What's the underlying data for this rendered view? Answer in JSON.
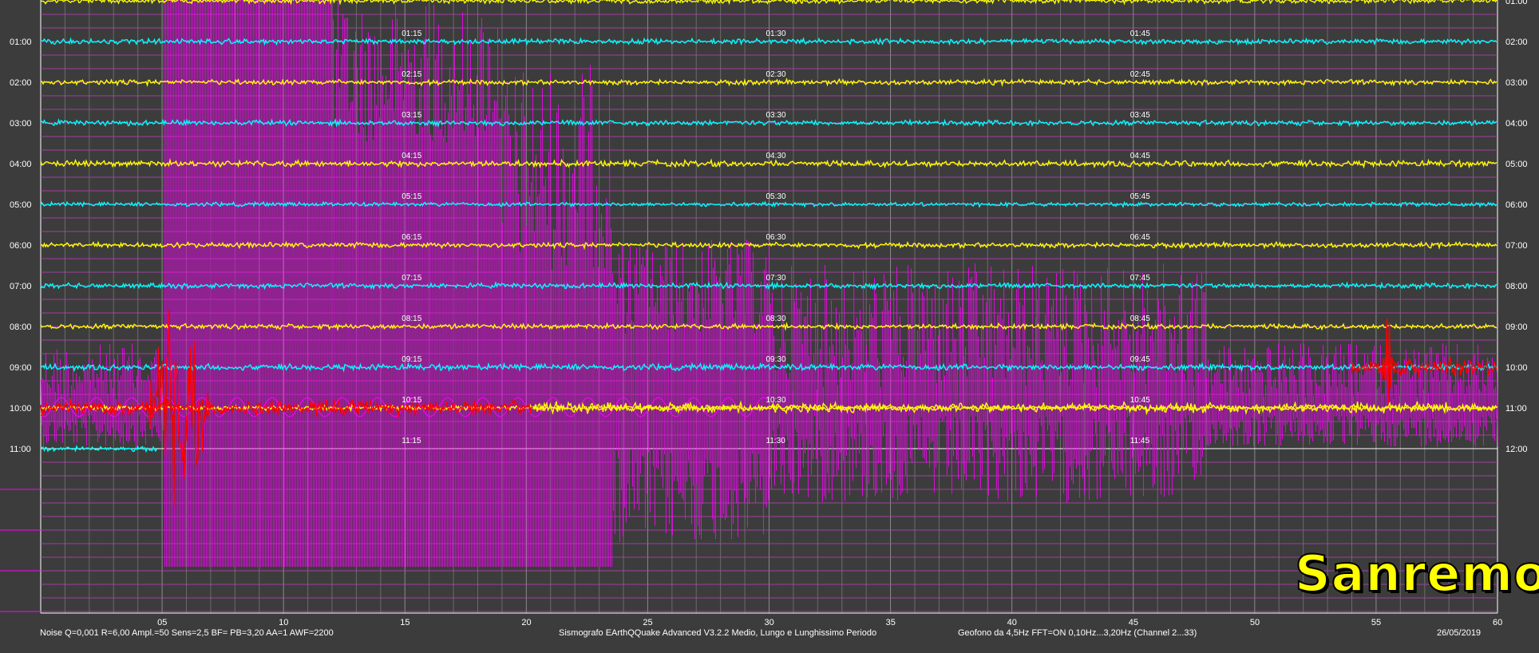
{
  "chart_data": {
    "type": "line",
    "title": "",
    "xlabel": "",
    "ylabel": "",
    "xlim": [
      0,
      60
    ],
    "x_ticks": [
      "05",
      "10",
      "15",
      "20",
      "25",
      "30",
      "35",
      "40",
      "45",
      "50",
      "55",
      "60"
    ],
    "grid": true,
    "rows": [
      {
        "left": "",
        "right": "01:00",
        "color": "#ffff00",
        "amp": 1,
        "marks": [
          "",
          "",
          ""
        ]
      },
      {
        "left": "01:00",
        "right": "02:00",
        "color": "#00ffff",
        "amp": 1,
        "marks": [
          "01:15",
          "01:30",
          "01:45"
        ]
      },
      {
        "left": "02:00",
        "right": "03:00",
        "color": "#ffff00",
        "amp": 1,
        "marks": [
          "02:15",
          "02:30",
          "02:45"
        ]
      },
      {
        "left": "03:00",
        "right": "04:00",
        "color": "#00ffff",
        "amp": 1,
        "marks": [
          "03:15",
          "03:30",
          "03:45"
        ]
      },
      {
        "left": "04:00",
        "right": "05:00",
        "color": "#ffff00",
        "amp": 1.2,
        "marks": [
          "04:15",
          "04:30",
          "04:45"
        ]
      },
      {
        "left": "05:00",
        "right": "06:00",
        "color": "#00ffff",
        "amp": 0.8,
        "marks": [
          "05:15",
          "05:30",
          "05:45"
        ]
      },
      {
        "left": "06:00",
        "right": "07:00",
        "color": "#ffff00",
        "amp": 1,
        "marks": [
          "06:15",
          "06:30",
          "06:45"
        ]
      },
      {
        "left": "07:00",
        "right": "08:00",
        "color": "#00ffff",
        "amp": 1,
        "marks": [
          "07:15",
          "07:30",
          "07:45"
        ]
      },
      {
        "left": "08:00",
        "right": "09:00",
        "color": "#ffff00",
        "amp": 1,
        "marks": [
          "08:15",
          "08:30",
          "08:45"
        ]
      },
      {
        "left": "09:00",
        "right": "10:00",
        "color": "#00ffff",
        "amp": 1.2,
        "marks": [
          "09:15",
          "09:30",
          "09:45"
        ]
      },
      {
        "left": "10:00",
        "right": "11:00",
        "color": "#ffff00",
        "amp": 1,
        "marks": [
          "10:15",
          "10:30",
          "10:45"
        ]
      },
      {
        "left": "11:00",
        "right": "12:00",
        "color": "#00ffff",
        "amp": 1,
        "marks": [
          "11:15",
          "11:30",
          "11:45"
        ]
      }
    ],
    "events": [
      {
        "row": 10,
        "x_start": 0,
        "x_end": 20.3,
        "color": "#ff0000",
        "amp": 14
      },
      {
        "row": 10,
        "x_start": 20.3,
        "x_end": 60,
        "color": "#ffff00",
        "amp": 9
      },
      {
        "row": 9,
        "x_start": 54,
        "x_end": 60,
        "color": "#ff0000",
        "amp": 18
      },
      {
        "row": 10,
        "x_start": 4.3,
        "x_end": 7.0,
        "color": "#ff0000",
        "amp": 180
      },
      {
        "row": 9,
        "x_start": 55.2,
        "x_end": 55.9,
        "color": "#ff0000",
        "amp": 110
      }
    ],
    "long_period": {
      "color": "#ff00ff",
      "x_start": 0,
      "x_end": 60
    }
  },
  "brand": "Sanremo",
  "footer": {
    "left": "Noise Q=0,001 R=6,00 Ampl.=50 Sens=2,5 BF= PB=3,20 AA=1 AWF=2200",
    "center": "Sismografo  EArthQQuake Advanced V3.2.2  Medio, Lungo e Lunghissimo Periodo",
    "right": "Geofono da 4,5Hz FFT=ON 0,10Hz...3,20Hz       (Channel 2...33)",
    "date": "26/05/2019"
  }
}
